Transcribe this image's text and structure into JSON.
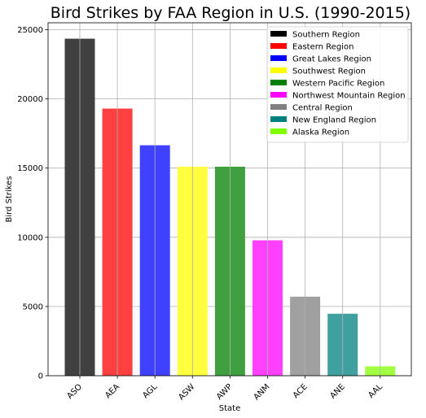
{
  "chart_data": {
    "type": "bar",
    "title": "Bird Strikes by FAA Region in U.S. (1990-2015)",
    "xlabel": "State",
    "ylabel": "Bird Strikes",
    "categories": [
      "ASO",
      "AEA",
      "AGL",
      "ASW",
      "AWP",
      "ANM",
      "ACE",
      "ANE",
      "AAL"
    ],
    "values": [
      24350,
      19300,
      16650,
      15100,
      15100,
      9780,
      5710,
      4480,
      680
    ],
    "bar_colors": [
      "#404040",
      "#ff4040",
      "#4040ff",
      "#ffff40",
      "#40a040",
      "#ff40ff",
      "#a0a0a0",
      "#40a0a0",
      "#a0ff40"
    ],
    "ylim": [
      0,
      25500
    ],
    "yticks": [
      0,
      5000,
      10000,
      15000,
      20000,
      25000
    ],
    "grid": true,
    "legend_position": "top-right",
    "legend": [
      {
        "label": "Southern Region",
        "color": "#000000"
      },
      {
        "label": "Eastern Region",
        "color": "#ff0000"
      },
      {
        "label": "Great Lakes Region",
        "color": "#0000ff"
      },
      {
        "label": "Southwest Region",
        "color": "#ffff00"
      },
      {
        "label": "Western Pacific Region",
        "color": "#008000"
      },
      {
        "label": "Northwest Mountain Region",
        "color": "#ff00ff"
      },
      {
        "label": "Central Region",
        "color": "#808080"
      },
      {
        "label": "New England Region",
        "color": "#008080"
      },
      {
        "label": "Alaska Region",
        "color": "#80ff00"
      }
    ]
  }
}
